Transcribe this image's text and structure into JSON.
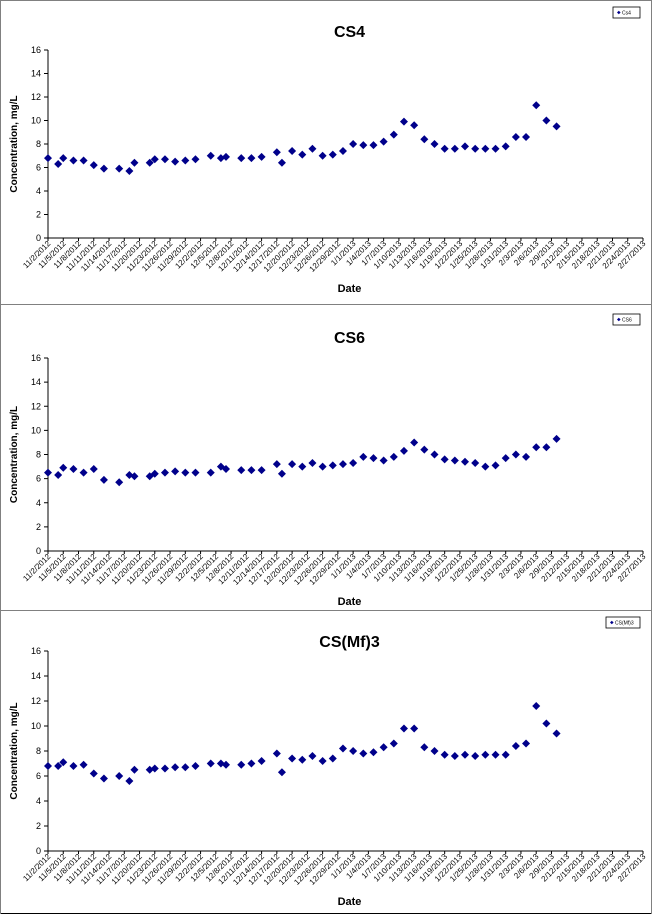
{
  "chart_data": [
    {
      "type": "scatter",
      "title": "CS4",
      "xlabel": "Date",
      "ylabel": "Concentration, mg/L",
      "ylim": [
        0,
        16
      ],
      "yticks": [
        "0",
        "2",
        "4",
        "6",
        "8",
        "10",
        "12",
        "14",
        "16"
      ],
      "xticks": [
        "11/2/2012",
        "11/5/2012",
        "11/8/2012",
        "11/11/2012",
        "11/14/2012",
        "11/17/2012",
        "11/20/2012",
        "11/23/2012",
        "11/26/2012",
        "11/29/2012",
        "12/2/2012",
        "12/5/2012",
        "12/8/2012",
        "12/11/2012",
        "12/14/2012",
        "12/17/2012",
        "12/20/2012",
        "12/23/2012",
        "12/26/2012",
        "12/29/2012",
        "1/1/2013",
        "1/4/2013",
        "1/7/2013",
        "1/10/2013",
        "1/13/2013",
        "1/16/2013",
        "1/19/2013",
        "1/22/2013",
        "1/25/2013",
        "1/28/2013",
        "1/31/2013",
        "2/3/2013",
        "2/6/2013",
        "2/9/2013",
        "2/12/2013",
        "2/15/2013",
        "2/18/2013",
        "2/21/2013",
        "2/24/2013",
        "2/27/2013"
      ],
      "legend": "Cs4",
      "legend_position": "top-right",
      "grid": false,
      "series": [
        {
          "color": "#00008B",
          "points": [
            [
              "11/2/2012",
              6.8
            ],
            [
              "11/4/2012",
              6.3
            ],
            [
              "11/5/2012",
              6.8
            ],
            [
              "11/7/2012",
              6.6
            ],
            [
              "11/9/2012",
              6.6
            ],
            [
              "11/11/2012",
              6.2
            ],
            [
              "11/13/2012",
              5.9
            ],
            [
              "11/16/2012",
              5.9
            ],
            [
              "11/18/2012",
              5.7
            ],
            [
              "11/19/2012",
              6.4
            ],
            [
              "11/22/2012",
              6.4
            ],
            [
              "11/23/2012",
              6.7
            ],
            [
              "11/25/2012",
              6.7
            ],
            [
              "11/27/2012",
              6.5
            ],
            [
              "11/29/2012",
              6.6
            ],
            [
              "12/1/2012",
              6.7
            ],
            [
              "12/4/2012",
              7.0
            ],
            [
              "12/6/2012",
              6.8
            ],
            [
              "12/7/2012",
              6.9
            ],
            [
              "12/10/2012",
              6.8
            ],
            [
              "12/12/2012",
              6.8
            ],
            [
              "12/14/2012",
              6.9
            ],
            [
              "12/17/2012",
              7.3
            ],
            [
              "12/18/2012",
              6.4
            ],
            [
              "12/20/2012",
              7.4
            ],
            [
              "12/22/2012",
              7.1
            ],
            [
              "12/24/2012",
              7.6
            ],
            [
              "12/26/2012",
              7.0
            ],
            [
              "12/28/2012",
              7.1
            ],
            [
              "12/30/2012",
              7.4
            ],
            [
              "1/1/2013",
              8.0
            ],
            [
              "1/3/2013",
              7.9
            ],
            [
              "1/5/2013",
              7.9
            ],
            [
              "1/7/2013",
              8.2
            ],
            [
              "1/9/2013",
              8.8
            ],
            [
              "1/11/2013",
              9.9
            ],
            [
              "1/13/2013",
              9.6
            ],
            [
              "1/15/2013",
              8.4
            ],
            [
              "1/17/2013",
              8.0
            ],
            [
              "1/19/2013",
              7.6
            ],
            [
              "1/21/2013",
              7.6
            ],
            [
              "1/23/2013",
              7.8
            ],
            [
              "1/25/2013",
              7.6
            ],
            [
              "1/27/2013",
              7.6
            ],
            [
              "1/29/2013",
              7.6
            ],
            [
              "1/31/2013",
              7.8
            ],
            [
              "2/2/2013",
              8.6
            ],
            [
              "2/4/2013",
              8.6
            ],
            [
              "2/6/2013",
              11.3
            ],
            [
              "2/8/2013",
              10.0
            ],
            [
              "2/10/2013",
              9.5
            ]
          ]
        }
      ]
    },
    {
      "type": "scatter",
      "title": "CS6",
      "xlabel": "Date",
      "ylabel": "Concentration, mg/L",
      "ylim": [
        0,
        16
      ],
      "yticks": [
        "0",
        "2",
        "4",
        "6",
        "8",
        "10",
        "12",
        "14",
        "16"
      ],
      "xticks": [
        "11/2/2012",
        "11/5/2012",
        "11/8/2012",
        "11/11/2012",
        "11/14/2012",
        "11/17/2012",
        "11/20/2012",
        "11/23/2012",
        "11/26/2012",
        "11/29/2012",
        "12/2/2012",
        "12/5/2012",
        "12/8/2012",
        "12/11/2012",
        "12/14/2012",
        "12/17/2012",
        "12/20/2012",
        "12/23/2012",
        "12/26/2012",
        "12/29/2012",
        "1/1/2013",
        "1/4/2013",
        "1/7/2013",
        "1/10/2013",
        "1/13/2013",
        "1/16/2013",
        "1/19/2013",
        "1/22/2013",
        "1/25/2013",
        "1/28/2013",
        "1/31/2013",
        "2/3/2013",
        "2/6/2013",
        "2/9/2013",
        "2/12/2013",
        "2/15/2013",
        "2/18/2013",
        "2/21/2013",
        "2/24/2013",
        "2/27/2013"
      ],
      "legend": "CS6",
      "legend_position": "top-right",
      "grid": false,
      "series": [
        {
          "color": "#00008B",
          "points": [
            [
              "11/2/2012",
              6.5
            ],
            [
              "11/4/2012",
              6.3
            ],
            [
              "11/5/2012",
              6.9
            ],
            [
              "11/7/2012",
              6.8
            ],
            [
              "11/9/2012",
              6.5
            ],
            [
              "11/11/2012",
              6.8
            ],
            [
              "11/13/2012",
              5.9
            ],
            [
              "11/16/2012",
              5.7
            ],
            [
              "11/18/2012",
              6.3
            ],
            [
              "11/19/2012",
              6.2
            ],
            [
              "11/22/2012",
              6.2
            ],
            [
              "11/23/2012",
              6.4
            ],
            [
              "11/25/2012",
              6.5
            ],
            [
              "11/27/2012",
              6.6
            ],
            [
              "11/29/2012",
              6.5
            ],
            [
              "12/1/2012",
              6.5
            ],
            [
              "12/4/2012",
              6.5
            ],
            [
              "12/6/2012",
              7.0
            ],
            [
              "12/7/2012",
              6.8
            ],
            [
              "12/10/2012",
              6.7
            ],
            [
              "12/12/2012",
              6.7
            ],
            [
              "12/14/2012",
              6.7
            ],
            [
              "12/17/2012",
              7.2
            ],
            [
              "12/18/2012",
              6.4
            ],
            [
              "12/20/2012",
              7.2
            ],
            [
              "12/22/2012",
              7.0
            ],
            [
              "12/24/2012",
              7.3
            ],
            [
              "12/26/2012",
              7.0
            ],
            [
              "12/28/2012",
              7.1
            ],
            [
              "12/30/2012",
              7.2
            ],
            [
              "1/1/2013",
              7.3
            ],
            [
              "1/3/2013",
              7.8
            ],
            [
              "1/5/2013",
              7.7
            ],
            [
              "1/7/2013",
              7.5
            ],
            [
              "1/9/2013",
              7.8
            ],
            [
              "1/11/2013",
              8.3
            ],
            [
              "1/13/2013",
              9.0
            ],
            [
              "1/15/2013",
              8.4
            ],
            [
              "1/17/2013",
              8.0
            ],
            [
              "1/19/2013",
              7.6
            ],
            [
              "1/21/2013",
              7.5
            ],
            [
              "1/23/2013",
              7.4
            ],
            [
              "1/25/2013",
              7.3
            ],
            [
              "1/27/2013",
              7.0
            ],
            [
              "1/29/2013",
              7.1
            ],
            [
              "1/31/2013",
              7.7
            ],
            [
              "2/2/2013",
              8.0
            ],
            [
              "2/4/2013",
              7.8
            ],
            [
              "2/6/2013",
              8.6
            ],
            [
              "2/8/2013",
              8.6
            ],
            [
              "2/10/2013",
              9.3
            ]
          ]
        }
      ]
    },
    {
      "type": "scatter",
      "title": "CS(Mf)3",
      "xlabel": "Date",
      "ylabel": "Concentration, mg/L",
      "ylim": [
        0,
        16
      ],
      "yticks": [
        "0",
        "2",
        "4",
        "6",
        "8",
        "10",
        "12",
        "14",
        "16"
      ],
      "xticks": [
        "11/2/2012",
        "11/5/2012",
        "11/8/2012",
        "11/11/2012",
        "11/14/2012",
        "11/17/2012",
        "11/20/2012",
        "11/23/2012",
        "11/26/2012",
        "11/29/2012",
        "12/2/2012",
        "12/5/2012",
        "12/8/2012",
        "12/11/2012",
        "12/14/2012",
        "12/17/2012",
        "12/20/2012",
        "12/23/2012",
        "12/26/2012",
        "12/29/2012",
        "1/1/2013",
        "1/4/2013",
        "1/7/2013",
        "1/10/2013",
        "1/13/2013",
        "1/16/2013",
        "1/19/2013",
        "1/22/2013",
        "1/25/2013",
        "1/28/2013",
        "1/31/2013",
        "2/3/2013",
        "2/6/2013",
        "2/9/2013",
        "2/12/2013",
        "2/15/2013",
        "2/18/2013",
        "2/21/2013",
        "2/24/2013",
        "2/27/2013"
      ],
      "legend": "CS(Mf)3",
      "legend_position": "top-right",
      "grid": false,
      "series": [
        {
          "color": "#00008B",
          "points": [
            [
              "11/2/2012",
              6.8
            ],
            [
              "11/4/2012",
              6.8
            ],
            [
              "11/5/2012",
              7.1
            ],
            [
              "11/7/2012",
              6.8
            ],
            [
              "11/9/2012",
              6.9
            ],
            [
              "11/11/2012",
              6.2
            ],
            [
              "11/13/2012",
              5.8
            ],
            [
              "11/16/2012",
              6.0
            ],
            [
              "11/18/2012",
              5.6
            ],
            [
              "11/19/2012",
              6.5
            ],
            [
              "11/22/2012",
              6.5
            ],
            [
              "11/23/2012",
              6.6
            ],
            [
              "11/25/2012",
              6.6
            ],
            [
              "11/27/2012",
              6.7
            ],
            [
              "11/29/2012",
              6.7
            ],
            [
              "12/1/2012",
              6.8
            ],
            [
              "12/4/2012",
              7.0
            ],
            [
              "12/6/2012",
              7.0
            ],
            [
              "12/7/2012",
              6.9
            ],
            [
              "12/10/2012",
              6.9
            ],
            [
              "12/12/2012",
              7.0
            ],
            [
              "12/14/2012",
              7.2
            ],
            [
              "12/17/2012",
              7.8
            ],
            [
              "12/18/2012",
              6.3
            ],
            [
              "12/20/2012",
              7.4
            ],
            [
              "12/22/2012",
              7.3
            ],
            [
              "12/24/2012",
              7.6
            ],
            [
              "12/26/2012",
              7.2
            ],
            [
              "12/28/2012",
              7.4
            ],
            [
              "12/30/2012",
              8.2
            ],
            [
              "1/1/2013",
              8.0
            ],
            [
              "1/3/2013",
              7.8
            ],
            [
              "1/5/2013",
              7.9
            ],
            [
              "1/7/2013",
              8.3
            ],
            [
              "1/9/2013",
              8.6
            ],
            [
              "1/11/2013",
              9.8
            ],
            [
              "1/13/2013",
              9.8
            ],
            [
              "1/15/2013",
              8.3
            ],
            [
              "1/17/2013",
              8.0
            ],
            [
              "1/19/2013",
              7.7
            ],
            [
              "1/21/2013",
              7.6
            ],
            [
              "1/23/2013",
              7.7
            ],
            [
              "1/25/2013",
              7.6
            ],
            [
              "1/27/2013",
              7.7
            ],
            [
              "1/29/2013",
              7.7
            ],
            [
              "1/31/2013",
              7.7
            ],
            [
              "2/2/2013",
              8.4
            ],
            [
              "2/4/2013",
              8.6
            ],
            [
              "2/6/2013",
              11.6
            ],
            [
              "2/8/2013",
              10.2
            ],
            [
              "2/10/2013",
              9.4
            ]
          ]
        }
      ]
    }
  ]
}
